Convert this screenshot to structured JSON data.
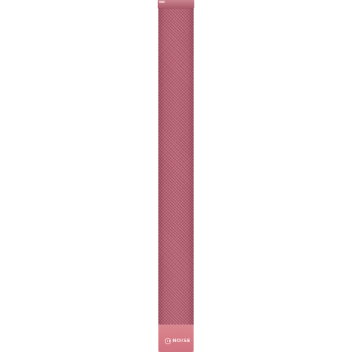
{
  "product": {
    "brand_text": "NOISE",
    "logo_icon": "noise-logo-icon",
    "colors": {
      "band": "#b25d6e",
      "endcap": "#d77e88",
      "logo": "#f7e3e6",
      "background": "#ffffff"
    }
  }
}
